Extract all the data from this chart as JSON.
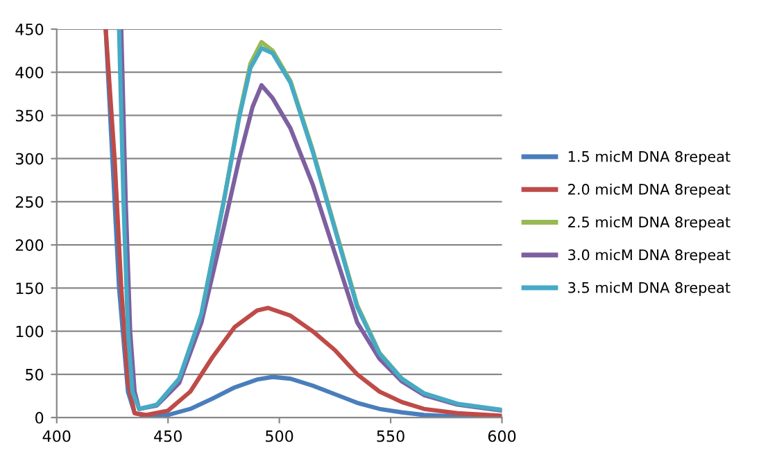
{
  "chart_data": {
    "type": "line",
    "xlim": [
      400,
      600
    ],
    "xticks": [
      400,
      450,
      500,
      550,
      600
    ],
    "ylim": [
      0,
      450
    ],
    "yticks": [
      0,
      50,
      100,
      150,
      200,
      250,
      300,
      350,
      400,
      450
    ],
    "grid": "y",
    "legend": "right",
    "marker": "none",
    "line_style": "solid",
    "series": [
      {
        "name": "1.5 micM DNA 8repeat",
        "color": "#4a7ebb",
        "x": [
          422,
          428,
          432,
          435,
          440,
          450,
          460,
          470,
          480,
          490,
          497,
          505,
          515,
          525,
          535,
          545,
          555,
          565,
          580,
          600
        ],
        "values": [
          450,
          150,
          30,
          5,
          2,
          3,
          10,
          22,
          35,
          44,
          47,
          45,
          37,
          27,
          17,
          10,
          6,
          3,
          1,
          0
        ]
      },
      {
        "name": "2.0 micM DNA 8repeat",
        "color": "#be4b48",
        "x": [
          422,
          426,
          429,
          432,
          435,
          440,
          450,
          460,
          470,
          480,
          490,
          495,
          505,
          515,
          525,
          535,
          545,
          555,
          565,
          580,
          600
        ],
        "values": [
          450,
          300,
          150,
          40,
          5,
          3,
          8,
          30,
          70,
          105,
          124,
          127,
          118,
          100,
          78,
          50,
          30,
          18,
          10,
          5,
          2
        ]
      },
      {
        "name": "2.5 micM DNA 8repeat",
        "color": "#98b954",
        "x": [
          465,
          475,
          482,
          487,
          492,
          497,
          505,
          515,
          525,
          535,
          545,
          555,
          565
        ],
        "values": [
          120,
          250,
          350,
          410,
          435,
          425,
          390,
          310,
          220,
          130,
          75,
          45,
          28
        ]
      },
      {
        "name": "3.0 micM DNA 8repeat",
        "color": "#7d60a0",
        "x": [
          429,
          431,
          433,
          435,
          437,
          445,
          455,
          465,
          475,
          482,
          488,
          492,
          497,
          505,
          515,
          525,
          535,
          545,
          555,
          565,
          580,
          600
        ],
        "values": [
          450,
          250,
          100,
          30,
          10,
          14,
          40,
          110,
          220,
          300,
          360,
          385,
          370,
          335,
          270,
          190,
          110,
          68,
          42,
          26,
          15,
          8
        ]
      },
      {
        "name": "3.5 micM DNA 8repeat",
        "color": "#46aac5",
        "x": [
          428,
          430,
          432,
          434,
          437,
          445,
          455,
          465,
          475,
          482,
          487,
          492,
          497,
          505,
          515,
          525,
          535,
          545,
          555,
          565,
          580,
          600
        ],
        "values": [
          450,
          250,
          100,
          30,
          10,
          15,
          45,
          120,
          250,
          348,
          405,
          428,
          422,
          388,
          308,
          218,
          128,
          74,
          45,
          28,
          16,
          9
        ]
      }
    ]
  }
}
